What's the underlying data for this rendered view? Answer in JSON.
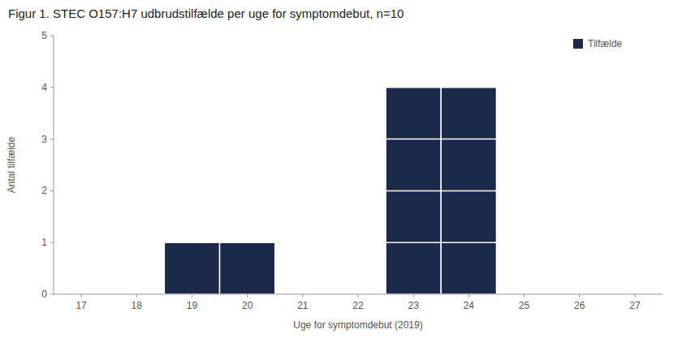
{
  "chart_data": {
    "type": "bar",
    "title": "Figur 1. STEC O157:H7 udbrudstilfælde per uge for symptomdebut, n=10",
    "xlabel": "Uge for symptomdebut (2019)",
    "ylabel": "Antal tilfælde",
    "x": [
      17,
      18,
      19,
      20,
      21,
      22,
      23,
      24,
      25,
      26,
      27
    ],
    "series": [
      {
        "name": "Tilfælde",
        "color": "#1B2A4A",
        "values": [
          0,
          0,
          1,
          1,
          0,
          0,
          4,
          4,
          0,
          0,
          0
        ]
      }
    ],
    "xlim": [
      16.5,
      27.5
    ],
    "xticks": [
      17,
      18,
      19,
      20,
      21,
      22,
      23,
      24,
      25,
      26,
      27
    ],
    "ylim": [
      0,
      5
    ],
    "yticks": [
      0,
      1,
      2,
      3,
      4,
      5
    ],
    "grid": false,
    "legend": "upper right"
  }
}
